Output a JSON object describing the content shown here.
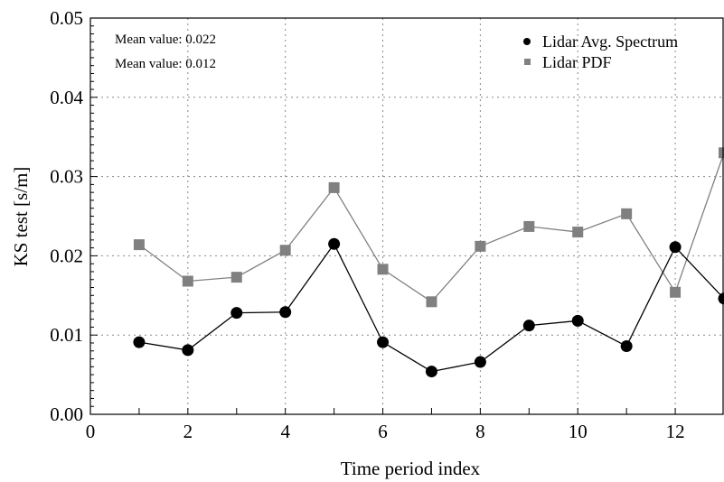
{
  "chart_data": {
    "type": "line",
    "xlabel": "Time period index",
    "ylabel": "KS test [s/m]",
    "xlim": [
      0,
      13
    ],
    "ylim": [
      0,
      0.05
    ],
    "x_ticks": [
      "0",
      "2",
      "4",
      "6",
      "8",
      "10",
      "12"
    ],
    "y_ticks": [
      "0.00",
      "0.01",
      "0.02",
      "0.03",
      "0.04",
      "0.05"
    ],
    "grid": true,
    "legend_position": "top-right",
    "annotations": [
      "Mean value: 0.022",
      "Mean value: 0.012"
    ],
    "series": [
      {
        "name": "Lidar Avg. Spectrum",
        "marker": "circle",
        "color": "#000000",
        "x": [
          1,
          2,
          3,
          4,
          5,
          6,
          7,
          8,
          9,
          10,
          11,
          12,
          13
        ],
        "y": [
          0.0091,
          0.0081,
          0.0128,
          0.0129,
          0.0215,
          0.0091,
          0.0054,
          0.0066,
          0.0112,
          0.0118,
          0.0086,
          0.0211,
          0.0146
        ]
      },
      {
        "name": "Lidar PDF",
        "marker": "square",
        "color": "#808080",
        "x": [
          1,
          2,
          3,
          4,
          5,
          6,
          7,
          8,
          9,
          10,
          11,
          12,
          13
        ],
        "y": [
          0.0214,
          0.0168,
          0.0173,
          0.0207,
          0.0286,
          0.0183,
          0.0142,
          0.0212,
          0.0237,
          0.023,
          0.0253,
          0.0154,
          0.033
        ]
      }
    ]
  }
}
